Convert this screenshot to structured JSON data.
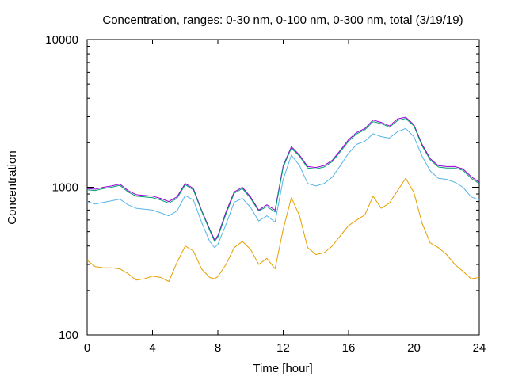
{
  "chart_data": {
    "type": "line",
    "title": "Concentration, ranges: 0-30 nm, 0-100 nm, 0-300 nm, total (3/19/19)",
    "xlabel": "Time [hour]",
    "ylabel": "Concentration",
    "xlim": [
      0,
      24
    ],
    "ylim": [
      100,
      10000
    ],
    "yscale": "log",
    "grid": false,
    "legend": "none",
    "x_ticks": [
      0,
      4,
      8,
      12,
      16,
      20,
      24
    ],
    "x_tick_labels": [
      "0",
      "4",
      "8",
      "12",
      "16",
      "20",
      "24"
    ],
    "y_ticks": [
      100,
      1000,
      10000
    ],
    "y_tick_labels": [
      "100",
      "1000",
      "10000"
    ],
    "x": [
      0,
      0.5,
      1,
      1.5,
      2,
      2.5,
      3,
      3.5,
      4,
      4.5,
      5,
      5.5,
      6,
      6.5,
      7,
      7.5,
      7.8,
      8,
      8.5,
      9,
      9.5,
      10,
      10.5,
      11,
      11.5,
      12,
      12.5,
      13,
      13.5,
      14,
      14.5,
      15,
      15.5,
      16,
      16.5,
      17,
      17.5,
      18,
      18.5,
      19,
      19.5,
      20,
      20.5,
      21,
      21.5,
      22,
      22.5,
      23,
      23.5,
      24
    ],
    "series": [
      {
        "color": "#9400d3",
        "values": [
          980,
          970,
          1000,
          1020,
          1050,
          950,
          890,
          880,
          870,
          840,
          800,
          860,
          1060,
          980,
          700,
          520,
          440,
          470,
          680,
          930,
          1000,
          860,
          700,
          760,
          700,
          1400,
          1880,
          1650,
          1380,
          1360,
          1400,
          1520,
          1780,
          2100,
          2350,
          2500,
          2850,
          2750,
          2600,
          2900,
          2980,
          2650,
          1950,
          1560,
          1400,
          1380,
          1380,
          1330,
          1180,
          1080
        ]
      },
      {
        "color": "#009e73",
        "values": [
          960,
          950,
          980,
          1000,
          1030,
          930,
          870,
          860,
          850,
          820,
          780,
          840,
          1040,
          960,
          690,
          510,
          430,
          460,
          660,
          910,
          980,
          840,
          690,
          740,
          680,
          1370,
          1840,
          1620,
          1350,
          1330,
          1370,
          1490,
          1740,
          2050,
          2300,
          2450,
          2780,
          2700,
          2550,
          2830,
          2920,
          2600,
          1910,
          1530,
          1370,
          1350,
          1350,
          1300,
          1150,
          1060
        ]
      },
      {
        "color": "#56b4e9",
        "values": [
          800,
          770,
          790,
          810,
          830,
          760,
          720,
          710,
          700,
          670,
          640,
          690,
          880,
          820,
          580,
          430,
          390,
          410,
          560,
          790,
          840,
          730,
          590,
          640,
          580,
          1130,
          1650,
          1400,
          1060,
          1020,
          1060,
          1170,
          1400,
          1700,
          1950,
          2050,
          2300,
          2200,
          2150,
          2380,
          2500,
          2200,
          1620,
          1290,
          1150,
          1130,
          1080,
          1000,
          860,
          820
        ]
      },
      {
        "color": "#e69f00",
        "values": [
          320,
          290,
          285,
          285,
          280,
          260,
          235,
          240,
          250,
          245,
          230,
          310,
          400,
          370,
          280,
          245,
          240,
          248,
          300,
          390,
          430,
          380,
          300,
          330,
          280,
          520,
          850,
          640,
          390,
          350,
          360,
          400,
          470,
          550,
          600,
          650,
          870,
          720,
          780,
          950,
          1150,
          920,
          570,
          420,
          390,
          350,
          300,
          270,
          240,
          245
        ]
      }
    ]
  }
}
